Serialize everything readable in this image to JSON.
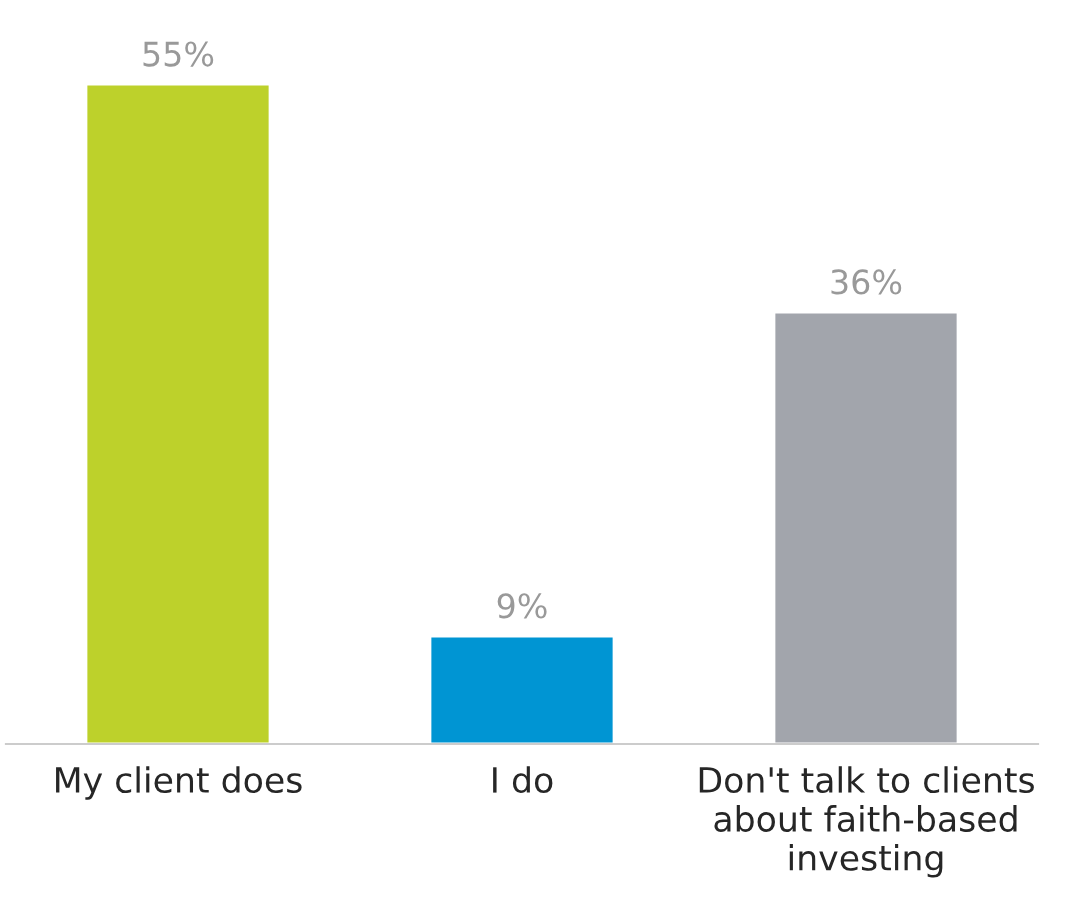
{
  "chart_data": {
    "type": "bar",
    "categories": [
      "My client does",
      "I do",
      "Don't talk to clients\nabout faith-based\ninvesting"
    ],
    "values": [
      55,
      9,
      36
    ],
    "colors": [
      "#bdd12b",
      "#0095d3",
      "#a2a5ac"
    ],
    "value_labels": [
      "55%",
      "9%",
      "36%"
    ],
    "grid": false,
    "legend": false,
    "tick_labels": "x"
  }
}
